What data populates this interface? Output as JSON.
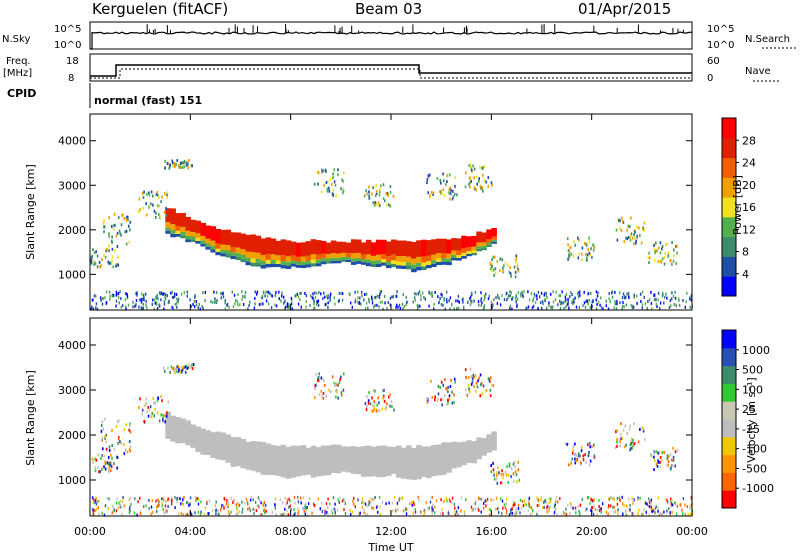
{
  "header": {
    "station": "Kerguelen (fitACF)",
    "beam": "Beam 03",
    "date": "01/Apr/2015"
  },
  "top_panels": {
    "nsky_label": "N.Sky",
    "nsky_ticks": [
      "10^5",
      "10^0"
    ],
    "nsky_right_ticks": [
      "10^5",
      "10^0"
    ],
    "nsearch_label": "N.Search",
    "freq_label_1": "Freq.",
    "freq_label_2": "[MHz]",
    "freq_ticks": [
      "18",
      "8"
    ],
    "nave_ticks": [
      "60",
      "0"
    ],
    "nave_label": "Nave",
    "cpid_label": "CPID",
    "cpid_value": "normal (fast) 151"
  },
  "colors": {
    "power": [
      "#0000ff",
      "#1e4ea8",
      "#3c8c6a",
      "#52b050",
      "#f0e020",
      "#f0a000",
      "#f06000",
      "#e02000",
      "#ff0000"
    ],
    "velocity": [
      "#ff0000",
      "#ff6400",
      "#ff9600",
      "#f0c800",
      "#bebebe",
      "#c8c8b4",
      "#32c832",
      "#3c8c6a",
      "#2850b4",
      "#0000ff"
    ]
  },
  "chart_data": [
    {
      "type": "heatmap",
      "panel": "power",
      "ylabel": "Slant Range [km]",
      "ylim": [
        200,
        4600
      ],
      "yticks": [
        "1000",
        "2000",
        "3000",
        "4000"
      ],
      "xlim": [
        0,
        24
      ],
      "colorbar_label": "Power [dB]",
      "colorbar_ticks": [
        "4",
        "8",
        "12",
        "16",
        "20",
        "24",
        "28"
      ],
      "regions": [
        {
          "name": "main-echo",
          "t": [
            3.0,
            4.0,
            5.0,
            6.0,
            7.0,
            8.0,
            9.0,
            10.0,
            11.0,
            12.0,
            13.0,
            14.0,
            15.0,
            16.0
          ],
          "lo": [
            1900,
            1700,
            1450,
            1250,
            1150,
            1150,
            1200,
            1250,
            1200,
            1150,
            1050,
            1200,
            1400,
            1700
          ],
          "hi": [
            2500,
            2250,
            2050,
            1900,
            1800,
            1750,
            1750,
            1750,
            1750,
            1750,
            1750,
            1800,
            1850,
            2050
          ],
          "value": 26
        }
      ]
    },
    {
      "type": "heatmap",
      "panel": "velocity",
      "ylabel": "Slant Range [km]",
      "ylim": [
        200,
        4600
      ],
      "yticks": [
        "1000",
        "2000",
        "3000",
        "4000"
      ],
      "xlim": [
        0,
        24
      ],
      "xticks": [
        "00:00",
        "04:00",
        "08:00",
        "12:00",
        "16:00",
        "20:00",
        "00:00"
      ],
      "xlabel": "Time UT",
      "colorbar_label": "Velocity [m s⁻¹]",
      "colorbar_ticks": [
        "-1000",
        "-500",
        "-100",
        "-25",
        "25",
        "100",
        "500",
        "1000"
      ],
      "regions": [
        {
          "name": "main-echo",
          "t": [
            3.0,
            4.0,
            5.0,
            6.0,
            7.0,
            8.0,
            9.0,
            10.0,
            11.0,
            12.0,
            13.0,
            14.0,
            15.0,
            16.0
          ],
          "lo": [
            1900,
            1700,
            1450,
            1250,
            1100,
            1050,
            1100,
            1150,
            1100,
            1100,
            1000,
            1150,
            1350,
            1650
          ],
          "hi": [
            2500,
            2250,
            2050,
            1900,
            1800,
            1750,
            1750,
            1750,
            1750,
            1750,
            1750,
            1800,
            1850,
            2050
          ],
          "value": 0
        }
      ]
    }
  ]
}
